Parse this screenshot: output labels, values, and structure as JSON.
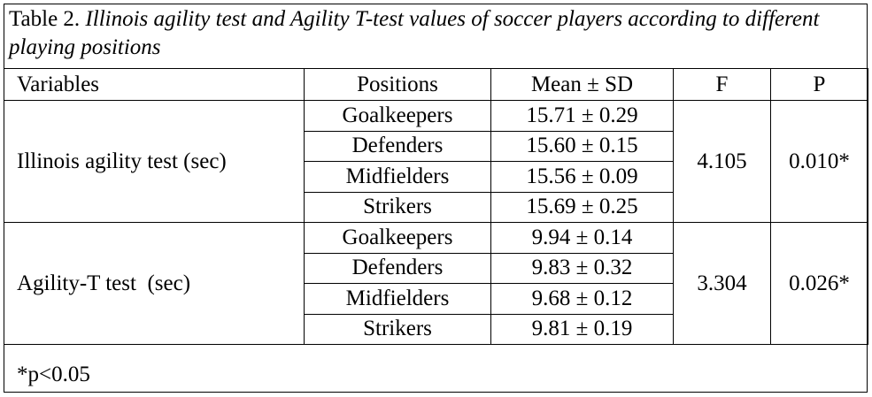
{
  "caption": {
    "label": "Table 2.",
    "title": "Illinois agility test and Agility T-test values of soccer players according to different playing positions"
  },
  "headers": {
    "variables": "Variables",
    "positions": "Positions",
    "mean_sd": "Mean ± SD",
    "f": "F",
    "p": "P"
  },
  "groups": [
    {
      "variable": "Illinois agility test (sec)",
      "f": "4.105",
      "p": "0.010*",
      "rows": [
        {
          "position": "Goalkeepers",
          "mean_sd": "15.71 ± 0.29"
        },
        {
          "position": "Defenders",
          "mean_sd": "15.60 ± 0.15"
        },
        {
          "position": "Midfielders",
          "mean_sd": "15.56 ± 0.09"
        },
        {
          "position": "Strikers",
          "mean_sd": "15.69 ± 0.25"
        }
      ]
    },
    {
      "variable": "Agility-T test  (sec)",
      "f": "3.304",
      "p": "0.026*",
      "rows": [
        {
          "position": "Goalkeepers",
          "mean_sd": "9.94 ± 0.14"
        },
        {
          "position": "Defenders",
          "mean_sd": "9.83 ± 0.32"
        },
        {
          "position": "Midfielders",
          "mean_sd": "9.68 ± 0.12"
        },
        {
          "position": "Strikers",
          "mean_sd": "9.81 ± 0.19"
        }
      ]
    }
  ],
  "footnote": "*p<0.05"
}
